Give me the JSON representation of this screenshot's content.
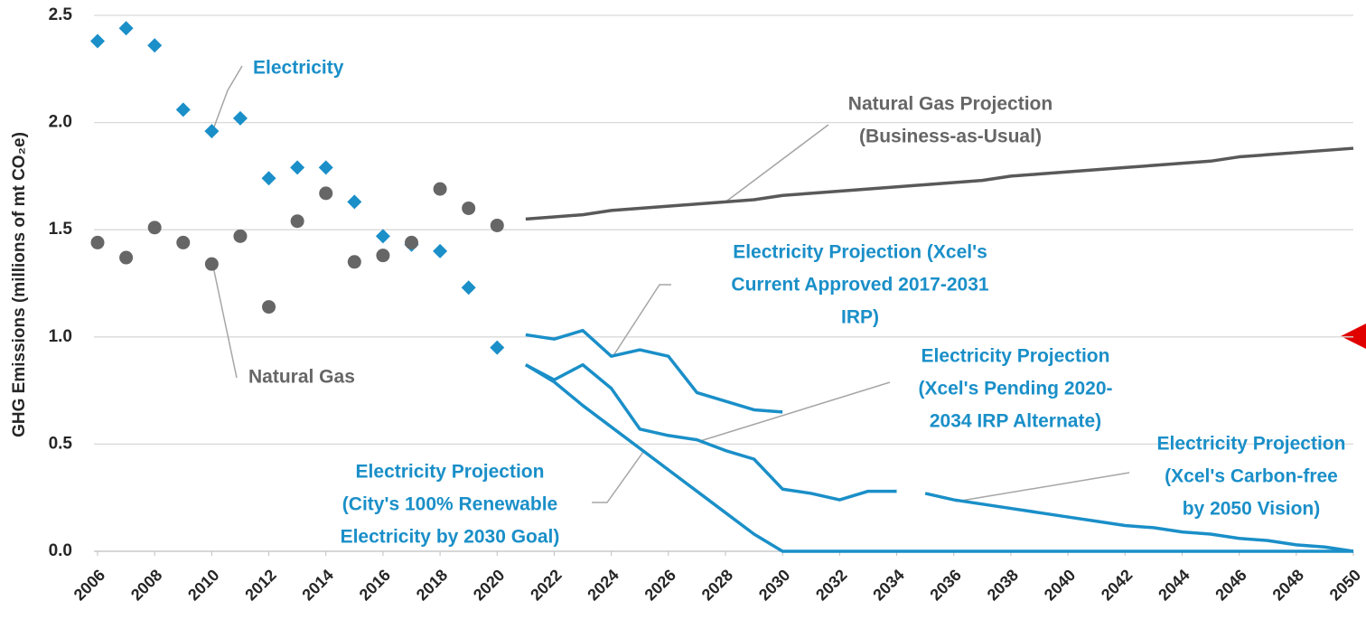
{
  "chart_data": {
    "type": "line",
    "ylabel": "GHG Emissions (millions of mt CO₂e)",
    "xlim": [
      2006,
      2050
    ],
    "xticks": [
      2006,
      2008,
      2010,
      2012,
      2014,
      2016,
      2018,
      2020,
      2022,
      2024,
      2026,
      2028,
      2030,
      2032,
      2034,
      2036,
      2038,
      2040,
      2042,
      2044,
      2046,
      2048,
      2050
    ],
    "ylim": [
      0,
      2.5
    ],
    "yticks": [
      {
        "value": 0,
        "label": "0.0"
      },
      0.5,
      {
        "value": 1,
        "label": "1.0"
      },
      1.5,
      {
        "value": 2,
        "label": "2.0"
      },
      2.5
    ],
    "grid": true,
    "series": [
      {
        "color": "#1a8fc8",
        "marker": "diamond",
        "x": [
          2006,
          2007,
          2008,
          2009,
          2010,
          2011,
          2012,
          2013,
          2014,
          2015,
          2016,
          2017,
          2018,
          2019,
          2020
        ],
        "values": [
          2.38,
          2.44,
          2.36,
          2.06,
          1.96,
          2.02,
          1.74,
          1.79,
          1.79,
          1.63,
          1.47,
          1.43,
          1.4,
          1.23,
          0.95
        ]
      },
      {
        "color": "#666666",
        "marker": "circle",
        "x": [
          2006,
          2007,
          2008,
          2009,
          2010,
          2011,
          2012,
          2013,
          2014,
          2015,
          2016,
          2017,
          2018,
          2019,
          2020
        ],
        "values": [
          1.44,
          1.37,
          1.51,
          1.44,
          1.34,
          1.47,
          1.14,
          1.54,
          1.67,
          1.35,
          1.38,
          1.44,
          1.69,
          1.6,
          1.52
        ]
      },
      {
        "color": "#595959",
        "marker": "none",
        "x": [
          2021,
          2022,
          2023,
          2024,
          2025,
          2026,
          2027,
          2028,
          2029,
          2030,
          2031,
          2032,
          2033,
          2034,
          2035,
          2036,
          2037,
          2038,
          2039,
          2040,
          2041,
          2042,
          2043,
          2044,
          2045,
          2046,
          2047,
          2048,
          2049,
          2050
        ],
        "values": [
          1.55,
          1.56,
          1.57,
          1.59,
          1.6,
          1.61,
          1.62,
          1.63,
          1.64,
          1.66,
          1.67,
          1.68,
          1.69,
          1.7,
          1.71,
          1.72,
          1.73,
          1.75,
          1.76,
          1.77,
          1.78,
          1.79,
          1.8,
          1.81,
          1.82,
          1.84,
          1.85,
          1.86,
          1.87,
          1.88
        ]
      },
      {
        "color": "#1a8fc8",
        "marker": "none",
        "x": [
          2021,
          2022,
          2023,
          2024,
          2025,
          2026,
          2027,
          2028,
          2029,
          2030
        ],
        "values": [
          1.01,
          0.99,
          1.03,
          0.91,
          0.94,
          0.91,
          0.74,
          0.7,
          0.66,
          0.65
        ]
      },
      {
        "color": "#1a8fc8",
        "marker": "none",
        "x": [
          2021,
          2022,
          2023,
          2024,
          2025,
          2026,
          2027,
          2028,
          2029,
          2030,
          2031,
          2032,
          2033,
          2034
        ],
        "values": [
          0.87,
          0.8,
          0.87,
          0.76,
          0.57,
          0.54,
          0.52,
          0.47,
          0.43,
          0.29,
          0.27,
          0.24,
          0.28,
          0.28
        ]
      },
      {
        "color": "#1a8fc8",
        "marker": "none",
        "x": [
          2021,
          2022,
          2023,
          2024,
          2025,
          2026,
          2027,
          2028,
          2029,
          2030,
          2050
        ],
        "values": [
          0.87,
          0.79,
          0.68,
          0.58,
          0.48,
          0.38,
          0.28,
          0.18,
          0.08,
          0,
          0
        ]
      },
      {
        "color": "#1a8fc8",
        "marker": "none",
        "x": [
          2035,
          2036,
          2037,
          2038,
          2039,
          2040,
          2041,
          2042,
          2043,
          2044,
          2045,
          2046,
          2047,
          2048,
          2049,
          2050
        ],
        "values": [
          0.27,
          0.24,
          0.22,
          0.2,
          0.18,
          0.16,
          0.14,
          0.12,
          0.11,
          0.09,
          0.08,
          0.06,
          0.05,
          0.03,
          0.02,
          0
        ]
      }
    ],
    "annotations": [
      {
        "lines": [
          "Electricity"
        ],
        "color": "#1a8fc8"
      },
      {
        "lines": [
          "Natural Gas"
        ],
        "color": "#666666"
      },
      {
        "lines": [
          "Natural Gas Projection",
          "(Business-as-Usual)"
        ],
        "color": "#666666"
      },
      {
        "lines": [
          "Electricity Projection (Xcel's",
          "Current Approved 2017-2031",
          "IRP)"
        ],
        "color": "#1a8fc8"
      },
      {
        "lines": [
          "Electricity Projection",
          "(Xcel's Pending 2020-",
          "2034 IRP Alternate)"
        ],
        "color": "#1a8fc8"
      },
      {
        "lines": [
          "Electricity Projection",
          "(City's 100% Renewable",
          "Electricity by 2030 Goal)"
        ],
        "color": "#1a8fc8"
      },
      {
        "lines": [
          "Electricity Projection",
          "(Xcel's Carbon-free",
          "by 2050 Vision)"
        ],
        "color": "#1a8fc8"
      }
    ]
  }
}
